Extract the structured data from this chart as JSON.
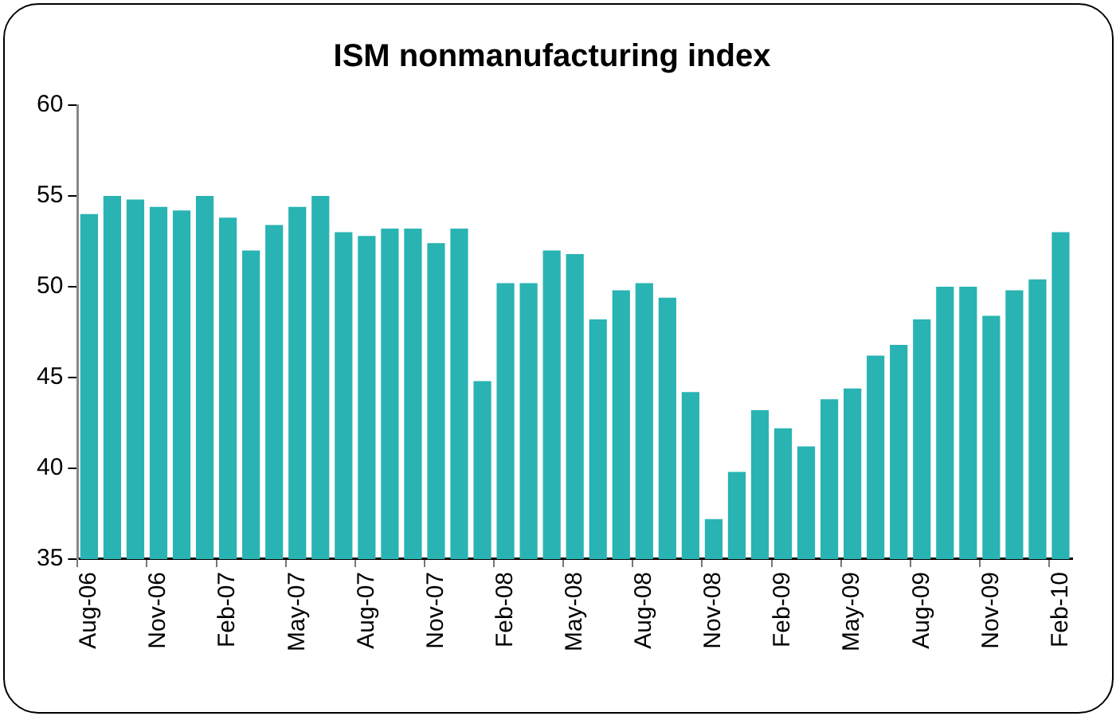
{
  "chart_data": {
    "type": "bar",
    "title": "ISM nonmanufacturing index",
    "categories": [
      "Aug-06",
      null,
      null,
      "Nov-06",
      null,
      null,
      "Feb-07",
      null,
      null,
      "May-07",
      null,
      null,
      "Aug-07",
      null,
      null,
      "Nov-07",
      null,
      null,
      "Feb-08",
      null,
      null,
      "May-08",
      null,
      null,
      "Aug-08",
      null,
      null,
      "Nov-08",
      null,
      null,
      "Feb-09",
      null,
      null,
      "May-09",
      null,
      null,
      "Aug-09",
      null,
      null,
      "Nov-09",
      null,
      null,
      "Feb-10"
    ],
    "values": [
      54.0,
      55.0,
      54.8,
      54.4,
      54.2,
      55.0,
      53.8,
      52.0,
      53.4,
      54.4,
      55.0,
      53.0,
      52.8,
      53.2,
      53.2,
      52.4,
      53.2,
      44.8,
      50.2,
      50.2,
      52.0,
      51.8,
      48.2,
      49.8,
      50.2,
      49.4,
      44.2,
      37.2,
      39.8,
      43.2,
      42.2,
      41.2,
      43.8,
      44.4,
      46.2,
      46.8,
      48.2,
      50.0,
      50.0,
      48.4,
      49.8,
      50.4,
      53.0
    ],
    "color": "#2ab3b3",
    "ylim": [
      35,
      60
    ],
    "yticks": [
      35,
      40,
      45,
      50,
      55,
      60
    ],
    "grid": false,
    "legend": false
  }
}
